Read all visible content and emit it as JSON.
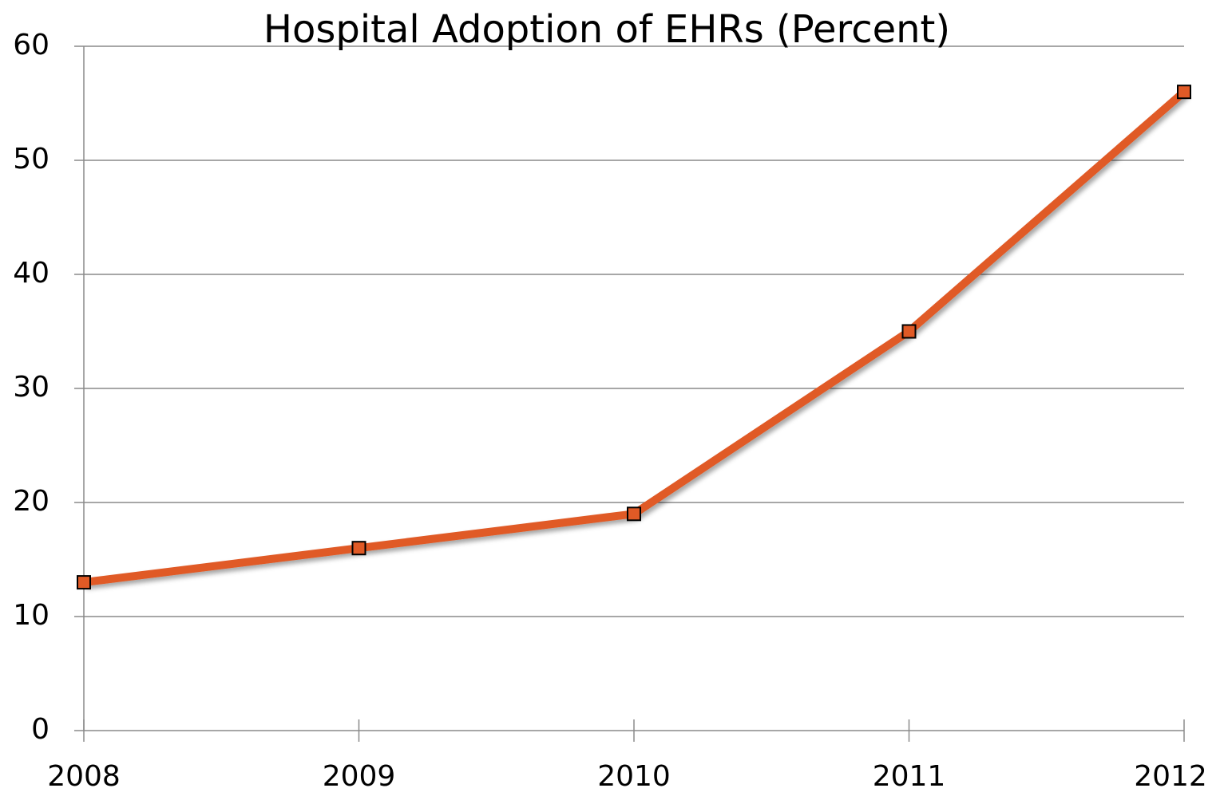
{
  "chart_data": {
    "type": "line",
    "title": "Hospital Adoption of EHRs (Percent)",
    "categories": [
      "2008",
      "2009",
      "2010",
      "2011",
      "2012"
    ],
    "series": [
      {
        "name": "Hospital Adoption of EHRs (Percent)",
        "color": "#e05a26",
        "values": [
          13,
          16,
          19,
          35,
          56
        ]
      }
    ],
    "ylim": [
      0,
      60
    ],
    "yticks": [
      0,
      10,
      20,
      30,
      40,
      50,
      60
    ],
    "grid": true
  }
}
